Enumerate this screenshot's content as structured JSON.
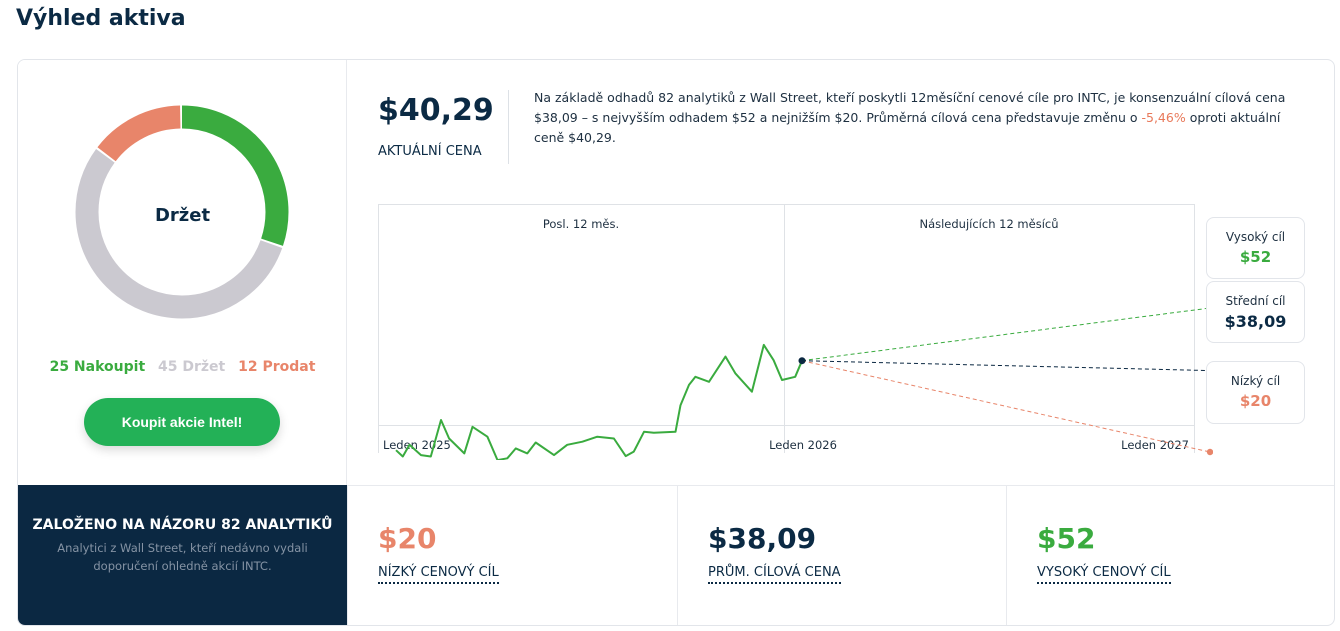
{
  "title": "Výhled aktiva",
  "consensus": {
    "label": "Držet",
    "buy": {
      "count": 25,
      "text": "25 Nakoupit"
    },
    "hold": {
      "count": 45,
      "text": "45 Držet"
    },
    "sell": {
      "count": 12,
      "text": "12 Prodat"
    },
    "button": "Koupit akcie Intel!"
  },
  "colors": {
    "buy": "#3aab3f",
    "hold": "#cbc9d0",
    "sell": "#e8856a",
    "navy": "#0b2842",
    "button": "#23b157"
  },
  "current": {
    "price": "$40,29",
    "label": "AKTUÁLNÍ CENA"
  },
  "description": {
    "part1": "Na základě odhadů 82 analytiků z Wall Street, kteří poskytli 12měsíční cenové cíle pro INTC, je konsenzuální cílová cena $38,09 – s nejvyšším odhadem $52 a nejnižším $20. Průměrná cílová cena představuje změnu o ",
    "change": "-5,46%",
    "part2": " oproti aktuální ceně $40,29."
  },
  "chart_data": {
    "type": "line",
    "sections": [
      "Posl. 12 měs.",
      "Následujících 12 měsíců"
    ],
    "x_labels": [
      "Leden 2025",
      "Leden 2026",
      "Leden 2027"
    ],
    "history": {
      "months": [
        0,
        0.2,
        0.4,
        0.74,
        1.03,
        1.33,
        1.57,
        2.02,
        2.26,
        2.7,
        3.0,
        3.29,
        3.54,
        3.88,
        4.13,
        4.67,
        5.06,
        5.51,
        5.95,
        6.44,
        6.79,
        7.03,
        7.33,
        7.62,
        8.26,
        8.41,
        8.66,
        8.85,
        9.25,
        9.74,
        10.03,
        10.52,
        10.87,
        11.16,
        11.41,
        11.8,
        12
      ],
      "prices": [
        20.4,
        19.0,
        21.6,
        19.3,
        19.0,
        27.1,
        23.0,
        19.7,
        25.6,
        23.4,
        18.2,
        18.6,
        20.8,
        19.7,
        22.1,
        19.3,
        21.6,
        22.3,
        23.4,
        23.0,
        19.1,
        20.1,
        24.5,
        24.3,
        24.5,
        30.4,
        34.9,
        36.7,
        35.6,
        41.2,
        37.5,
        33.4,
        43.8,
        40.4,
        36.0,
        36.7,
        40.29
      ]
    },
    "targets": [
      {
        "label": "Vysoký cíl",
        "value": 52,
        "text": "$52"
      },
      {
        "label": "Střední cíl",
        "value": 38.09,
        "text": "$38,09"
      },
      {
        "label": "Nízký cíl",
        "value": 20,
        "text": "$20"
      }
    ]
  },
  "bottom": {
    "title": "ZALOŽENO NA NÁZORU 82 ANALYTIKŮ",
    "subtitle": "Analytici z Wall Street, kteří nedávno vydali doporučení ohledně akcií INTC.",
    "cells": [
      {
        "value": "$20",
        "label": "NÍZKÝ CENOVÝ CÍL"
      },
      {
        "value": "$38,09",
        "label": "PRŮM. CÍLOVÁ CENA"
      },
      {
        "value": "$52",
        "label": "VYSOKÝ CENOVÝ CÍL"
      }
    ]
  }
}
